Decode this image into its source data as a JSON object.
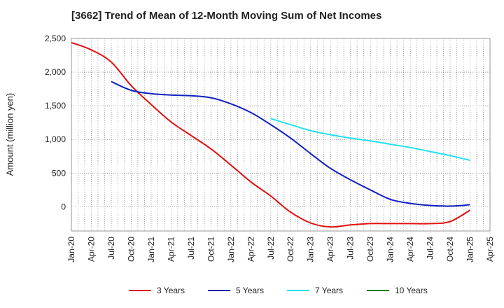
{
  "chart_data": {
    "type": "line",
    "title": "[3662]  Trend of Mean of 12-Month Moving Sum of Net Incomes",
    "xlabel": "",
    "ylabel": "Amount (million yen)",
    "x_ticks": [
      "Jan-20",
      "Apr-20",
      "Jul-20",
      "Oct-20",
      "Jan-21",
      "Apr-21",
      "Jul-21",
      "Oct-21",
      "Jan-22",
      "Apr-22",
      "Jul-22",
      "Oct-22",
      "Jan-23",
      "Apr-23",
      "Jul-23",
      "Oct-23",
      "Jan-24",
      "Apr-24",
      "Jul-24",
      "Oct-24",
      "Jan-25",
      "Apr-25"
    ],
    "y_ticks": [
      "2,500",
      "2,000",
      "1,500",
      "1,000",
      "500",
      "0"
    ],
    "y_tick_values": [
      2500,
      2000,
      1500,
      1000,
      500,
      0
    ],
    "ylim": [
      -360,
      2500
    ],
    "grid": true,
    "legend_position": "bottom",
    "series": [
      {
        "name": "3 Years",
        "color": "#e01010",
        "points": [
          [
            "Jan-20",
            2440
          ],
          [
            "Apr-20",
            2330
          ],
          [
            "Jul-20",
            2150
          ],
          [
            "Oct-20",
            1800
          ],
          [
            "Jan-21",
            1520
          ],
          [
            "Apr-21",
            1260
          ],
          [
            "Jul-21",
            1060
          ],
          [
            "Oct-21",
            860
          ],
          [
            "Jan-22",
            620
          ],
          [
            "Apr-22",
            370
          ],
          [
            "Jul-22",
            160
          ],
          [
            "Oct-22",
            -80
          ],
          [
            "Jan-23",
            -240
          ],
          [
            "Apr-23",
            -300
          ],
          [
            "Jul-23",
            -270
          ],
          [
            "Oct-23",
            -250
          ],
          [
            "Jan-24",
            -250
          ],
          [
            "Apr-24",
            -250
          ],
          [
            "Jul-24",
            -250
          ],
          [
            "Oct-24",
            -220
          ],
          [
            "Jan-25",
            -50
          ]
        ]
      },
      {
        "name": "5 Years",
        "color": "#1020c0",
        "points": [
          [
            "Jul-20",
            1860
          ],
          [
            "Oct-20",
            1730
          ],
          [
            "Jan-21",
            1680
          ],
          [
            "Apr-21",
            1660
          ],
          [
            "Jul-21",
            1650
          ],
          [
            "Oct-21",
            1620
          ],
          [
            "Jan-22",
            1530
          ],
          [
            "Apr-22",
            1400
          ],
          [
            "Jul-22",
            1220
          ],
          [
            "Oct-22",
            1020
          ],
          [
            "Jan-23",
            790
          ],
          [
            "Apr-23",
            570
          ],
          [
            "Jul-23",
            400
          ],
          [
            "Oct-23",
            250
          ],
          [
            "Jan-24",
            110
          ],
          [
            "Apr-24",
            50
          ],
          [
            "Jul-24",
            20
          ],
          [
            "Oct-24",
            10
          ],
          [
            "Jan-25",
            30
          ]
        ]
      },
      {
        "name": "7 Years",
        "color": "#20e0f0",
        "points": [
          [
            "Jul-22",
            1310
          ],
          [
            "Oct-22",
            1220
          ],
          [
            "Jan-23",
            1130
          ],
          [
            "Apr-23",
            1070
          ],
          [
            "Jul-23",
            1020
          ],
          [
            "Oct-23",
            980
          ],
          [
            "Jan-24",
            930
          ],
          [
            "Apr-24",
            880
          ],
          [
            "Jul-24",
            820
          ],
          [
            "Oct-24",
            760
          ],
          [
            "Jan-25",
            690
          ]
        ]
      },
      {
        "name": "10 Years",
        "color": "#208020",
        "points": []
      }
    ]
  }
}
